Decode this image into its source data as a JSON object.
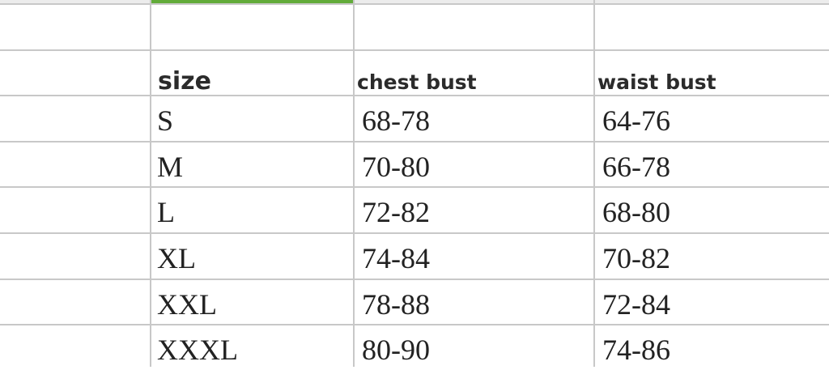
{
  "sheet": {
    "selection_color": "#62ab3a",
    "headers": [
      "size",
      "chest bust",
      "waist bust"
    ],
    "rows": [
      [
        "S",
        "68-78",
        "64-76"
      ],
      [
        "M",
        "70-80",
        "66-78"
      ],
      [
        "L",
        "72-82",
        "68-80"
      ],
      [
        "XL",
        "74-84",
        "70-82"
      ],
      [
        "XXL",
        "78-88",
        "72-84"
      ],
      [
        "XXXL",
        "80-90",
        "74-86"
      ]
    ]
  }
}
